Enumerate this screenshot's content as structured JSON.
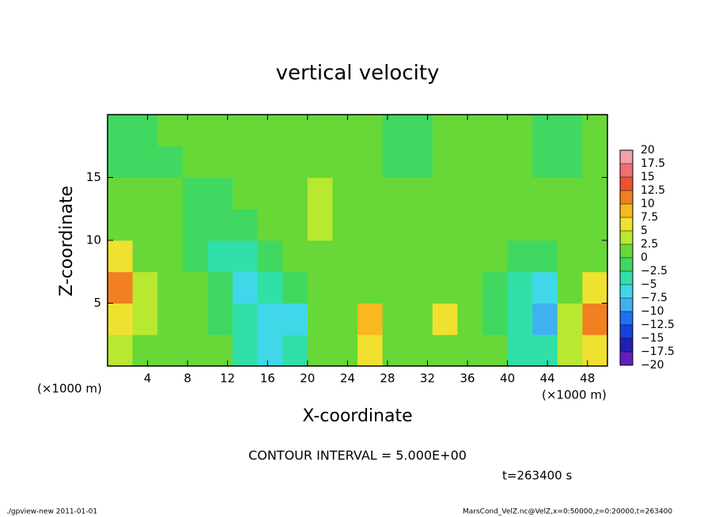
{
  "chart_data": {
    "type": "heatmap",
    "title": "vertical velocity",
    "x_label": "X-coordinate",
    "y_label": "Z-coordinate",
    "x_unit": "(×1000 m)",
    "y_unit": "(×1000 m)",
    "xlim": [
      0,
      50
    ],
    "ylim": [
      0,
      20
    ],
    "xticks": [
      4,
      8,
      12,
      16,
      20,
      24,
      28,
      32,
      36,
      40,
      44,
      48
    ],
    "yticks": [
      5,
      10,
      15
    ],
    "x": [
      1.25,
      3.75,
      6.25,
      8.75,
      11.25,
      13.75,
      16.25,
      18.75,
      21.25,
      23.75,
      26.25,
      28.75,
      31.25,
      33.75,
      36.25,
      38.75,
      41.25,
      43.75,
      46.25,
      48.75
    ],
    "z": [
      1.25,
      3.75,
      6.25,
      8.75,
      11.25,
      13.75,
      16.25,
      18.75
    ],
    "values": [
      [
        3,
        1,
        1,
        1,
        2,
        -3,
        -6,
        -4,
        1,
        1,
        5,
        1,
        1,
        2,
        1,
        1,
        -3,
        -4,
        3,
        6
      ],
      [
        6,
        3,
        1,
        1,
        -1,
        -4,
        -7,
        -6,
        1,
        1,
        8,
        1,
        1,
        5,
        1,
        -1,
        -5,
        -10,
        4,
        10
      ],
      [
        11,
        4,
        1,
        1,
        -2,
        -6,
        -4,
        -2,
        1,
        1,
        2,
        1,
        1,
        1,
        1,
        -1,
        -4,
        -6,
        1,
        5
      ],
      [
        5,
        2,
        1,
        -1,
        -3,
        -5,
        -2,
        1,
        1,
        1,
        1,
        1,
        1,
        1,
        1,
        1,
        -1,
        -1,
        1,
        2
      ],
      [
        1,
        1,
        1,
        -1,
        -2,
        -1,
        1,
        2,
        3,
        2,
        1,
        1,
        1,
        1,
        1,
        1,
        1,
        1,
        1,
        1
      ],
      [
        1,
        1,
        1,
        -1,
        -1,
        1,
        1,
        2,
        3,
        2,
        1,
        1,
        1,
        1,
        1,
        1,
        1,
        1,
        1,
        1
      ],
      [
        -1,
        -1,
        -1,
        1,
        1,
        1,
        1,
        1,
        2,
        1,
        1,
        -1,
        -1,
        1,
        1,
        1,
        1,
        -1,
        -1,
        1
      ],
      [
        -1,
        -1,
        1,
        1,
        1,
        1,
        1,
        1,
        1,
        1,
        1,
        -1,
        -1,
        1,
        1,
        1,
        1,
        -1,
        -1,
        1
      ]
    ],
    "colorbar": {
      "levels": [
        {
          "value": -20,
          "label": "−20"
        },
        {
          "value": -17.5,
          "label": "−17.5"
        },
        {
          "value": -15,
          "label": "−15"
        },
        {
          "value": -12.5,
          "label": "−12.5"
        },
        {
          "value": -10,
          "label": "−10"
        },
        {
          "value": -7.5,
          "label": "−7.5"
        },
        {
          "value": -5,
          "label": "−5"
        },
        {
          "value": -2.5,
          "label": "−2.5"
        },
        0,
        2.5,
        5,
        7.5,
        10,
        12.5,
        15,
        17.5,
        20
      ],
      "colors": [
        "#6020c0",
        "#2020b0",
        "#1840e0",
        "#2070f0",
        "#40b0f0",
        "#40d8e8",
        "#30e0a8",
        "#40d860",
        "#68d838",
        "#b8e830",
        "#f0e030",
        "#f8b820",
        "#f08020",
        "#f05030",
        "#f07070",
        "#f5a0a8"
      ]
    },
    "annotations": [
      "CONTOUR INTERVAL = 5.000E+00",
      "t=263400 s"
    ],
    "footer_left": "./gpview-new   2011-01-01",
    "footer_right": "MarsCond_VelZ.nc@VelZ,x=0:50000,z=0:20000,t=263400"
  }
}
